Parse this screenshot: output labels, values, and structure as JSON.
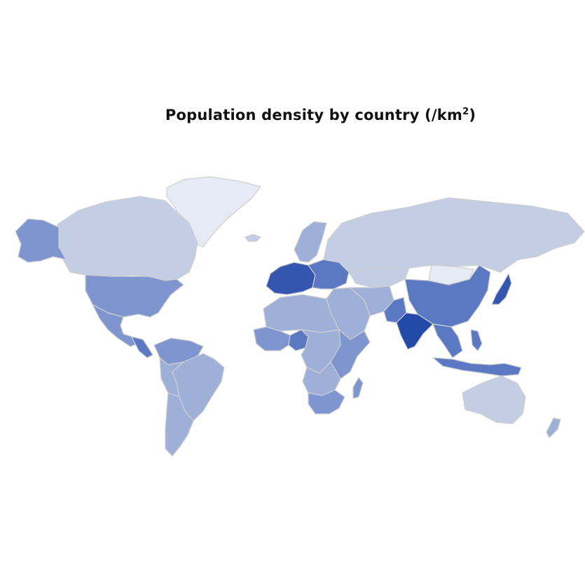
{
  "title": "Population density by country (/km",
  "title_sup": "2",
  "title_close": ")",
  "colors": {
    "background": "#ffffff",
    "border": "#cfcfcf",
    "scale": [
      "#e6eaf4",
      "#c3cde4",
      "#9eb0d8",
      "#7e95cf",
      "#5b79c2",
      "#3456b0",
      "#234aa8"
    ]
  },
  "regions": [
    {
      "name": "Greenland",
      "level": 0
    },
    {
      "name": "Canada",
      "level": 1
    },
    {
      "name": "Alaska",
      "level": 3
    },
    {
      "name": "United States",
      "level": 3
    },
    {
      "name": "Mexico",
      "level": 3
    },
    {
      "name": "Central America and Caribbean",
      "level": 4
    },
    {
      "name": "Colombia and Venezuela",
      "level": 3
    },
    {
      "name": "Brazil",
      "level": 2
    },
    {
      "name": "Peru and Bolivia",
      "level": 2
    },
    {
      "name": "Argentina and Chile",
      "level": 2
    },
    {
      "name": "Iceland",
      "level": 1
    },
    {
      "name": "Scandinavia",
      "level": 2
    },
    {
      "name": "Western Europe",
      "level": 5
    },
    {
      "name": "Eastern Europe",
      "level": 4
    },
    {
      "name": "Russia",
      "level": 1
    },
    {
      "name": "Kazakhstan",
      "level": 1
    },
    {
      "name": "Mongolia",
      "level": 0
    },
    {
      "name": "China",
      "level": 4
    },
    {
      "name": "Japan",
      "level": 5
    },
    {
      "name": "Middle East",
      "level": 2
    },
    {
      "name": "Iran and Afghanistan",
      "level": 2
    },
    {
      "name": "Pakistan",
      "level": 4
    },
    {
      "name": "India",
      "level": 6
    },
    {
      "name": "Southeast Asia",
      "level": 4
    },
    {
      "name": "Indonesia",
      "level": 4
    },
    {
      "name": "Philippines",
      "level": 4
    },
    {
      "name": "Australia",
      "level": 1
    },
    {
      "name": "New Zealand",
      "level": 2
    },
    {
      "name": "North Africa",
      "level": 2
    },
    {
      "name": "West Africa",
      "level": 3
    },
    {
      "name": "Nigeria",
      "level": 4
    },
    {
      "name": "Central Africa",
      "level": 2
    },
    {
      "name": "East Africa",
      "level": 3
    },
    {
      "name": "Southern Africa",
      "level": 2
    },
    {
      "name": "South Africa",
      "level": 3
    },
    {
      "name": "Madagascar",
      "level": 3
    }
  ]
}
